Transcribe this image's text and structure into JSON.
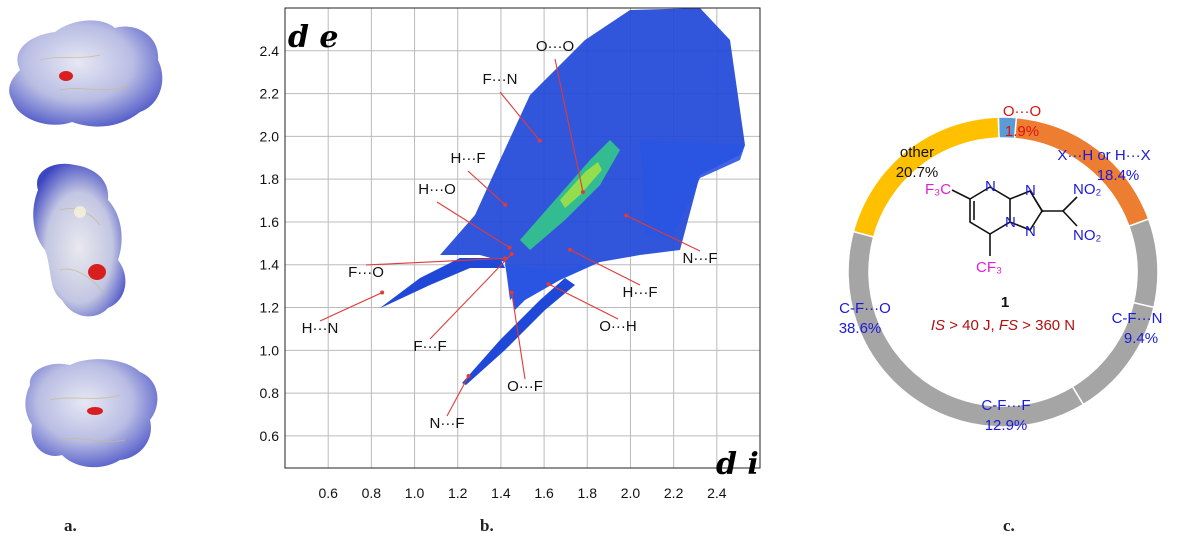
{
  "panels": {
    "a": "a.",
    "b": "b.",
    "c": "c."
  },
  "chart_data": [
    {
      "type": "scatter",
      "xlabel": "d i",
      "ylabel": "d e",
      "xticks": [
        "0.6",
        "0.8",
        "1.0",
        "1.2",
        "1.4",
        "1.6",
        "1.8",
        "2.0",
        "2.2",
        "2.4"
      ],
      "yticks": [
        "0.6",
        "0.8",
        "1.0",
        "1.2",
        "1.4",
        "1.6",
        "1.8",
        "2.0",
        "2.2",
        "2.4"
      ],
      "xlim": [
        0.4,
        2.6
      ],
      "ylim": [
        0.45,
        2.6
      ],
      "grid": true,
      "annotations": [
        {
          "text": "O···O",
          "point": [
            1.78,
            1.74
          ]
        },
        {
          "text": "F···N",
          "point": [
            1.58,
            1.98
          ]
        },
        {
          "text": "H···F",
          "point": [
            1.42,
            1.68
          ]
        },
        {
          "text": "H···O",
          "point": [
            1.44,
            1.48
          ]
        },
        {
          "text": "F···O",
          "point": [
            1.42,
            1.43
          ]
        },
        {
          "text": "H···N",
          "point": [
            0.85,
            1.27
          ]
        },
        {
          "text": "F···F",
          "point": [
            1.45,
            1.45
          ]
        },
        {
          "text": "O···F",
          "point": [
            1.45,
            1.27
          ]
        },
        {
          "text": "N···F",
          "point": [
            1.25,
            0.88
          ]
        },
        {
          "text": "O···H",
          "point": [
            1.62,
            1.31
          ]
        },
        {
          "text": "H···F",
          "point": [
            1.72,
            1.47
          ]
        },
        {
          "text": "N···F",
          "point": [
            1.98,
            1.63
          ]
        }
      ]
    },
    {
      "type": "pie",
      "donut": true,
      "labels": [
        "O···O",
        "X···H or H···X",
        "C-F···N",
        "C-F···F",
        "C-F···O",
        "other"
      ],
      "values": [
        1.9,
        18.4,
        9.4,
        12.9,
        38.6,
        20.7
      ],
      "value_labels": [
        "1.9%",
        "18.4%",
        "9.4%",
        "12.9%",
        "38.6%",
        "20.7%"
      ],
      "colors": [
        "#5a9bd5",
        "#ed7d31",
        "#a5a5a5",
        "#a5a5a5",
        "#a5a5a5",
        "#ffc000"
      ]
    }
  ],
  "molecule": {
    "cf3_left": "F₃C",
    "cf3_bottom": "CF₃",
    "no2_top": "NO₂",
    "no2_bottom": "NO₂",
    "n1": "N",
    "n2": "N",
    "n3": "N",
    "n4": "N",
    "compound_number": "1",
    "is_label": "IS",
    "is_value": " > 40 J, ",
    "fs_label": "FS",
    "fs_value": " > 360 N"
  }
}
